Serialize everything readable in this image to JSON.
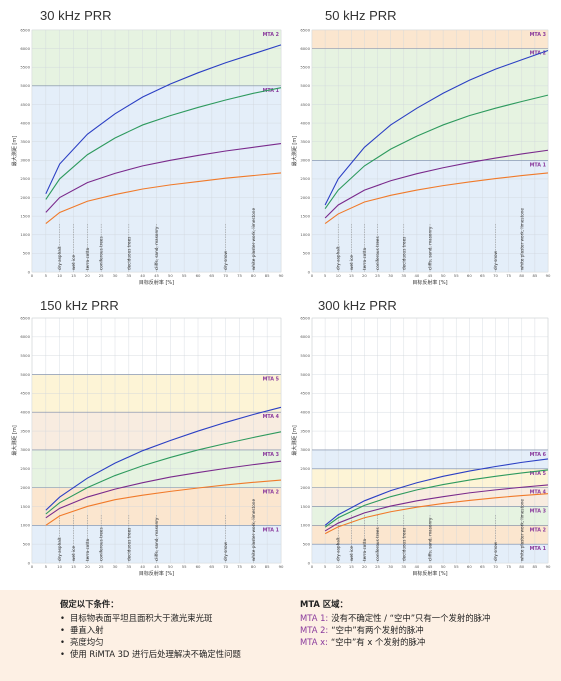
{
  "chart_data": [
    {
      "type": "line",
      "title": "30 kHz PRR",
      "xlabel": "目标反射率 [%]",
      "ylabel": "最大测距 [m]",
      "xlim": [
        0,
        90
      ],
      "ylim": [
        0,
        6500
      ],
      "x_ticks": [
        0,
        5,
        10,
        15,
        20,
        25,
        30,
        35,
        40,
        45,
        50,
        55,
        60,
        65,
        70,
        75,
        80,
        85,
        90
      ],
      "y_ticks": [
        0,
        500,
        1000,
        1500,
        2000,
        2500,
        3000,
        3500,
        4000,
        4500,
        5000,
        5500,
        6000,
        6500
      ],
      "x": [
        5,
        10,
        20,
        30,
        40,
        50,
        60,
        70,
        80,
        90
      ],
      "series": [
        {
          "color": "#2b3fc4",
          "values": [
            2100,
            2900,
            3700,
            4250,
            4700,
            5050,
            5350,
            5620,
            5860,
            6100
          ]
        },
        {
          "color": "#2e9a5e",
          "values": [
            1950,
            2500,
            3150,
            3600,
            3950,
            4200,
            4420,
            4620,
            4800,
            4950
          ]
        },
        {
          "color": "#7a2a8c",
          "values": [
            1600,
            2000,
            2400,
            2650,
            2850,
            3000,
            3130,
            3250,
            3350,
            3450
          ]
        },
        {
          "color": "#f07a2a",
          "values": [
            1300,
            1600,
            1900,
            2080,
            2230,
            2340,
            2430,
            2520,
            2590,
            2660
          ]
        }
      ],
      "mta_zones": [
        {
          "label": "MTA 1",
          "from": 0,
          "to": 5000,
          "color": "#e4eef9"
        },
        {
          "label": "MTA 2",
          "from": 5000,
          "to": 6500,
          "color": "#e6f3e1"
        }
      ],
      "surfaces": [
        {
          "x": 10,
          "label": "dry asphalt"
        },
        {
          "x": 15,
          "label": "wet ice"
        },
        {
          "x": 20,
          "label": "terra cotta"
        },
        {
          "x": 25,
          "label": "coniferous trees"
        },
        {
          "x": 35,
          "label": "deciduous trees"
        },
        {
          "x": 45,
          "label": "cliffs, sand, masonry"
        },
        {
          "x": 70,
          "label": "dry snow"
        },
        {
          "x": 80,
          "label": "white plaster work, limestone"
        }
      ]
    },
    {
      "type": "line",
      "title": "50 kHz PRR",
      "xlabel": "目标反射率 [%]",
      "ylabel": "最大测距 [m]",
      "xlim": [
        0,
        90
      ],
      "ylim": [
        0,
        6500
      ],
      "x_ticks": [
        0,
        5,
        10,
        15,
        20,
        25,
        30,
        35,
        40,
        45,
        50,
        55,
        60,
        65,
        70,
        75,
        80,
        85,
        90
      ],
      "y_ticks": [
        0,
        500,
        1000,
        1500,
        2000,
        2500,
        3000,
        3500,
        4000,
        4500,
        5000,
        5500,
        6000,
        6500
      ],
      "x": [
        5,
        10,
        20,
        30,
        40,
        50,
        60,
        70,
        80,
        90
      ],
      "series": [
        {
          "color": "#2b3fc4",
          "values": [
            1800,
            2500,
            3350,
            3950,
            4400,
            4800,
            5150,
            5450,
            5700,
            5950
          ]
        },
        {
          "color": "#2e9a5e",
          "values": [
            1700,
            2200,
            2850,
            3300,
            3650,
            3950,
            4200,
            4400,
            4580,
            4750
          ]
        },
        {
          "color": "#7a2a8c",
          "values": [
            1450,
            1800,
            2200,
            2450,
            2640,
            2800,
            2940,
            3060,
            3170,
            3270
          ]
        },
        {
          "color": "#f07a2a",
          "values": [
            1300,
            1560,
            1880,
            2060,
            2200,
            2320,
            2420,
            2510,
            2590,
            2660
          ]
        }
      ],
      "mta_zones": [
        {
          "label": "MTA 1",
          "from": 0,
          "to": 3000,
          "color": "#e4eef9"
        },
        {
          "label": "MTA 2",
          "from": 3000,
          "to": 6000,
          "color": "#e6f3e1"
        },
        {
          "label": "MTA 3",
          "from": 6000,
          "to": 6500,
          "color": "#fbe6cf"
        }
      ],
      "surfaces": [
        {
          "x": 10,
          "label": "dry asphalt"
        },
        {
          "x": 15,
          "label": "wet ice"
        },
        {
          "x": 20,
          "label": "terra cotta"
        },
        {
          "x": 25,
          "label": "coniferous trees"
        },
        {
          "x": 35,
          "label": "deciduous trees"
        },
        {
          "x": 45,
          "label": "cliffs, sand, masonry"
        },
        {
          "x": 70,
          "label": "dry snow"
        },
        {
          "x": 80,
          "label": "white plaster work, limestone"
        }
      ]
    },
    {
      "type": "line",
      "title": "150 kHz PRR",
      "xlabel": "目标反射率 [%]",
      "ylabel": "最大测距 [m]",
      "xlim": [
        0,
        90
      ],
      "ylim": [
        0,
        6500
      ],
      "x_ticks": [
        0,
        5,
        10,
        15,
        20,
        25,
        30,
        35,
        40,
        45,
        50,
        55,
        60,
        65,
        70,
        75,
        80,
        85,
        90
      ],
      "y_ticks": [
        0,
        500,
        1000,
        1500,
        2000,
        2500,
        3000,
        3500,
        4000,
        4500,
        5000,
        5500,
        6000,
        6500
      ],
      "x": [
        5,
        10,
        20,
        30,
        40,
        50,
        60,
        70,
        80,
        90
      ],
      "series": [
        {
          "color": "#2b3fc4",
          "values": [
            1400,
            1750,
            2250,
            2650,
            2980,
            3250,
            3500,
            3730,
            3940,
            4130
          ]
        },
        {
          "color": "#2e9a5e",
          "values": [
            1300,
            1600,
            2000,
            2320,
            2580,
            2800,
            3000,
            3170,
            3330,
            3480
          ]
        },
        {
          "color": "#7a2a8c",
          "values": [
            1200,
            1450,
            1750,
            1960,
            2130,
            2280,
            2400,
            2510,
            2610,
            2700
          ]
        },
        {
          "color": "#f07a2a",
          "values": [
            1000,
            1250,
            1500,
            1680,
            1800,
            1900,
            1990,
            2070,
            2140,
            2200
          ]
        }
      ],
      "mta_zones": [
        {
          "label": "MTA 1",
          "from": 0,
          "to": 1000,
          "color": "#e4eef9"
        },
        {
          "label": "MTA 2",
          "from": 1000,
          "to": 2000,
          "color": "#fbe6cf"
        },
        {
          "label": "MTA 3",
          "from": 2000,
          "to": 3000,
          "color": "#e6f3e1"
        },
        {
          "label": "MTA 4",
          "from": 3000,
          "to": 4000,
          "color": "#f8ece0"
        },
        {
          "label": "MTA 5",
          "from": 4000,
          "to": 5000,
          "color": "#fdf4d6"
        }
      ],
      "surfaces": [
        {
          "x": 10,
          "label": "dry asphalt"
        },
        {
          "x": 15,
          "label": "wet ice"
        },
        {
          "x": 20,
          "label": "terra cotta"
        },
        {
          "x": 25,
          "label": "coniferous trees"
        },
        {
          "x": 35,
          "label": "deciduous trees"
        },
        {
          "x": 45,
          "label": "cliffs, sand, masonry"
        },
        {
          "x": 70,
          "label": "dry snow"
        },
        {
          "x": 80,
          "label": "white plaster work, limestone"
        }
      ]
    },
    {
      "type": "line",
      "title": "300 kHz PRR",
      "xlabel": "目标反射率 [%]",
      "ylabel": "最大测距 [m]",
      "xlim": [
        0,
        90
      ],
      "ylim": [
        0,
        6500
      ],
      "x_ticks": [
        0,
        5,
        10,
        15,
        20,
        25,
        30,
        35,
        40,
        45,
        50,
        55,
        60,
        65,
        70,
        75,
        80,
        85,
        90
      ],
      "y_ticks": [
        0,
        500,
        1000,
        1500,
        2000,
        2500,
        3000,
        3500,
        4000,
        4500,
        5000,
        5500,
        6000,
        6500
      ],
      "x": [
        5,
        10,
        20,
        30,
        40,
        50,
        60,
        70,
        80,
        90
      ],
      "series": [
        {
          "color": "#2b3fc4",
          "values": [
            1000,
            1280,
            1650,
            1920,
            2130,
            2300,
            2440,
            2560,
            2670,
            2760
          ]
        },
        {
          "color": "#2e9a5e",
          "values": [
            950,
            1200,
            1530,
            1760,
            1940,
            2080,
            2200,
            2300,
            2390,
            2470
          ]
        },
        {
          "color": "#7a2a8c",
          "values": [
            850,
            1060,
            1330,
            1510,
            1650,
            1760,
            1860,
            1940,
            2010,
            2070
          ]
        },
        {
          "color": "#f07a2a",
          "values": [
            780,
            960,
            1200,
            1360,
            1480,
            1580,
            1660,
            1730,
            1790,
            1840
          ]
        }
      ],
      "mta_zones": [
        {
          "label": "MTA 1",
          "from": 0,
          "to": 500,
          "color": "#e4eef9"
        },
        {
          "label": "MTA 2",
          "from": 500,
          "to": 1000,
          "color": "#fbe6cf"
        },
        {
          "label": "MTA 3",
          "from": 1000,
          "to": 1500,
          "color": "#e6f3e1"
        },
        {
          "label": "MTA 4",
          "from": 1500,
          "to": 2000,
          "color": "#f8ece0"
        },
        {
          "label": "MTA 5",
          "from": 2000,
          "to": 2500,
          "color": "#fdf4d6"
        },
        {
          "label": "MTA 6",
          "from": 2500,
          "to": 3000,
          "color": "#e4eef9"
        }
      ],
      "surfaces": [
        {
          "x": 10,
          "label": "dry asphalt"
        },
        {
          "x": 15,
          "label": "wet ice"
        },
        {
          "x": 20,
          "label": "terra cotta"
        },
        {
          "x": 25,
          "label": "coniferous trees"
        },
        {
          "x": 35,
          "label": "deciduous trees"
        },
        {
          "x": 45,
          "label": "cliffs, sand, masonry"
        },
        {
          "x": 70,
          "label": "dry snow"
        },
        {
          "x": 80,
          "label": "white plaster work, limestone"
        }
      ]
    }
  ],
  "footer": {
    "conditions_title": "假定以下条件：",
    "conditions": [
      "目标物表面平坦且面积大于激光束光斑",
      "垂直入射",
      "亮度均匀",
      "使用 RiMTA 3D 进行后处理解决不确定性问题"
    ],
    "mta_title": "MTA 区域：",
    "mta_rows": [
      {
        "code": "MTA 1:",
        "text": "没有不确定性 / “空中”只有一个发射的脉冲"
      },
      {
        "code": "MTA 2:",
        "text": "“空中”有两个发射的脉冲"
      },
      {
        "code": "MTA x:",
        "text": "“空中”有 x 个发射的脉冲"
      }
    ]
  }
}
